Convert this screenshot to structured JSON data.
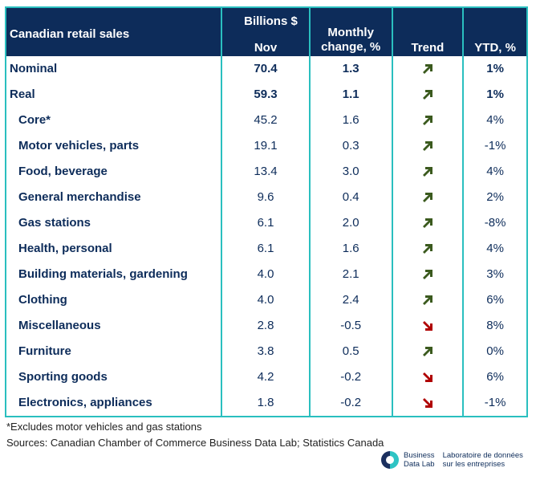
{
  "chart_data": {
    "type": "table",
    "title": "Canadian retail sales",
    "columns": [
      "Canadian retail sales",
      "Billions $ Nov",
      "Monthly change, %",
      "Trend",
      "YTD, %"
    ],
    "header": {
      "col0": "Canadian retail sales",
      "col1_line1": "Billions $",
      "col1_line2": "Nov",
      "col2_line1": "Monthly",
      "col2_line2": "change, %",
      "col3": "Trend",
      "col4": "YTD, %"
    },
    "rows": [
      {
        "label": "Nominal",
        "billions": "70.4",
        "monthly_change": "1.3",
        "trend": "up",
        "ytd": "1%",
        "bold": true
      },
      {
        "label": "Real",
        "billions": "59.3",
        "monthly_change": "1.1",
        "trend": "up",
        "ytd": "1%",
        "bold": true
      },
      {
        "label": "Core*",
        "billions": "45.2",
        "monthly_change": "1.6",
        "trend": "up",
        "ytd": "4%"
      },
      {
        "label": "Motor vehicles, parts",
        "billions": "19.1",
        "monthly_change": "0.3",
        "trend": "up",
        "ytd": "-1%"
      },
      {
        "label": "Food, beverage",
        "billions": "13.4",
        "monthly_change": "3.0",
        "trend": "up",
        "ytd": "4%"
      },
      {
        "label": "General merchandise",
        "billions": "9.6",
        "monthly_change": "0.4",
        "trend": "up",
        "ytd": "2%"
      },
      {
        "label": "Gas stations",
        "billions": "6.1",
        "monthly_change": "2.0",
        "trend": "up",
        "ytd": "-8%"
      },
      {
        "label": "Health, personal",
        "billions": "6.1",
        "monthly_change": "1.6",
        "trend": "up",
        "ytd": "4%"
      },
      {
        "label": "Building materials, gardening",
        "billions": "4.0",
        "monthly_change": "2.1",
        "trend": "up",
        "ytd": "3%"
      },
      {
        "label": "Clothing",
        "billions": "4.0",
        "monthly_change": "2.4",
        "trend": "up",
        "ytd": "6%"
      },
      {
        "label": "Miscellaneous",
        "billions": "2.8",
        "monthly_change": "-0.5",
        "trend": "down",
        "ytd": "8%"
      },
      {
        "label": "Furniture",
        "billions": "3.8",
        "monthly_change": "0.5",
        "trend": "up",
        "ytd": "0%"
      },
      {
        "label": "Sporting goods",
        "billions": "4.2",
        "monthly_change": "-0.2",
        "trend": "down",
        "ytd": "6%"
      },
      {
        "label": "Electronics, appliances",
        "billions": "1.8",
        "monthly_change": "-0.2",
        "trend": "down",
        "ytd": "-1%"
      }
    ]
  },
  "footnote": "*Excludes motor vehicles and gas stations",
  "sources": "Sources: Canadian Chamber of Commerce Business Data Lab; Statistics Canada",
  "logo": {
    "en_line1": "Business",
    "en_line2": "Data Lab",
    "fr_line1": "Laboratoire de données",
    "fr_line2": "sur les entreprises"
  },
  "colors": {
    "header_bg": "#0d2c5a",
    "border": "#2abfbf",
    "trend_up": "#3b5a1e",
    "trend_down": "#b00000",
    "logo_dark": "#1b2f5e",
    "logo_teal": "#2ec4c4"
  }
}
